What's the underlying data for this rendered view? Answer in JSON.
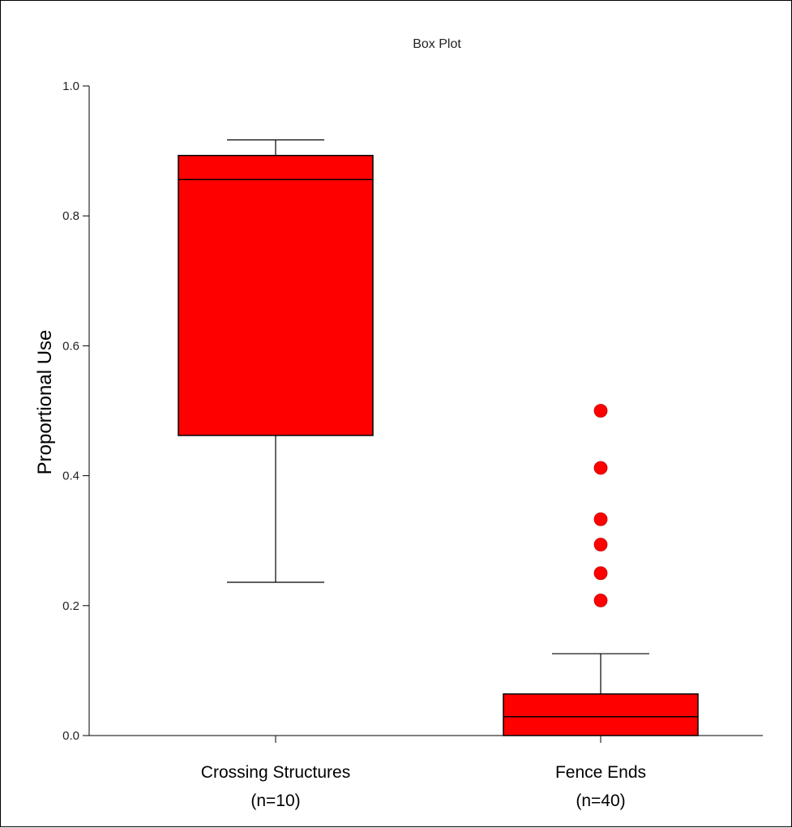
{
  "chart_data": {
    "type": "box",
    "title": "Box Plot",
    "ylabel": "Proportional Use",
    "xlabel": "",
    "ylim": [
      0,
      1
    ],
    "yticks": [
      "0.0",
      "0.2",
      "0.4",
      "0.6",
      "0.8",
      "1.0"
    ],
    "grid": false,
    "colors": {
      "box_fill": "#ff0000",
      "outlier": "#ff0000",
      "stroke": "#000000"
    },
    "categories": [
      {
        "label": "Crossing Structures",
        "n_label": "(n=10)",
        "whisker_low": 0.236,
        "q1": 0.462,
        "median": 0.856,
        "q3": 0.893,
        "whisker_high": 0.917,
        "outliers": []
      },
      {
        "label": "Fence Ends",
        "n_label": "(n=40)",
        "whisker_low": 0.0,
        "q1": 0.0,
        "median": 0.029,
        "q3": 0.064,
        "whisker_high": 0.126,
        "outliers": [
          0.5,
          0.412,
          0.333,
          0.294,
          0.25,
          0.208
        ]
      }
    ]
  }
}
